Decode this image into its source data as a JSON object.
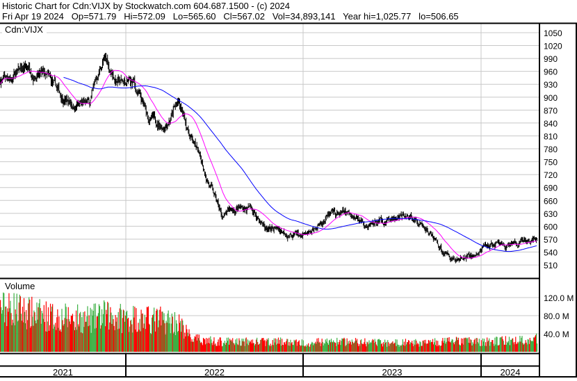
{
  "header": {
    "title": "Historic Chart for Cdn:VIJX by Stockwatch.com 604.687.1500 - (c) 2024",
    "quote": "Fri Apr 19 2024   Op=571.79   Hi=572.09   Lo=565.60   Cl=567.02   Vol=34,893,141   Year hi=1,025.77   lo=506.65"
  },
  "chart_data": [
    {
      "type": "line",
      "title": "Cdn:VIJX",
      "style": "ohlc bars with two moving averages",
      "ma_colors": [
        "#ff00ff",
        "#0000ff"
      ],
      "bar_color": "#000000",
      "ylim": [
        495,
        1065
      ],
      "yticks": [
        1050,
        1020,
        990,
        960,
        930,
        900,
        870,
        840,
        810,
        780,
        750,
        720,
        690,
        660,
        630,
        600,
        570,
        540,
        510
      ],
      "grid": true,
      "x": [
        "2021-05",
        "2021-06",
        "2021-07",
        "2021-08",
        "2021-09",
        "2021-10",
        "2021-11",
        "2021-12",
        "2022-01",
        "2022-02",
        "2022-03",
        "2022-04",
        "2022-05",
        "2022-06",
        "2022-07",
        "2022-08",
        "2022-09",
        "2022-10",
        "2022-11",
        "2022-12",
        "2023-01",
        "2023-02",
        "2023-03",
        "2023-04",
        "2023-05",
        "2023-06",
        "2023-07",
        "2023-08",
        "2023-09",
        "2023-10",
        "2023-11",
        "2023-12",
        "2024-01",
        "2024-02",
        "2024-03",
        "2024-04"
      ],
      "close": [
        950,
        970,
        945,
        905,
        884,
        880,
        990,
        935,
        930,
        850,
        835,
        885,
        800,
        715,
        620,
        641,
        641,
        595,
        592,
        578,
        576,
        621,
        625,
        625,
        609,
        613,
        617,
        620,
        590,
        540,
        522,
        530,
        552,
        557,
        555,
        567
      ]
    },
    {
      "type": "bar",
      "title": "Volume",
      "up_color": "#3cb043",
      "down_color": "#ff0000",
      "ylim": [
        0,
        150
      ],
      "yticks": [
        "120.0 M",
        "80.0 M",
        "40.0 M"
      ],
      "grid": true,
      "x": [
        "2021-05",
        "2021-06",
        "2021-07",
        "2021-08",
        "2021-09",
        "2021-10",
        "2021-11",
        "2021-12",
        "2022-01",
        "2022-02",
        "2022-03",
        "2022-04",
        "2022-05",
        "2022-06",
        "2022-07",
        "2022-08",
        "2022-09",
        "2022-10",
        "2022-11",
        "2022-12",
        "2023-01",
        "2023-02",
        "2023-03",
        "2023-04",
        "2023-05",
        "2023-06",
        "2023-07",
        "2023-08",
        "2023-09",
        "2023-10",
        "2023-11",
        "2023-12",
        "2024-01",
        "2024-02",
        "2024-03",
        "2024-04"
      ],
      "avg_volume_millions": [
        95,
        85,
        80,
        75,
        75,
        70,
        80,
        75,
        75,
        70,
        70,
        65,
        28,
        25,
        22,
        22,
        22,
        22,
        22,
        20,
        20,
        22,
        22,
        22,
        20,
        20,
        20,
        20,
        20,
        22,
        24,
        22,
        22,
        24,
        25,
        28
      ]
    }
  ],
  "xaxis": {
    "years": [
      "2021",
      "2022",
      "2023",
      "2024"
    ]
  }
}
